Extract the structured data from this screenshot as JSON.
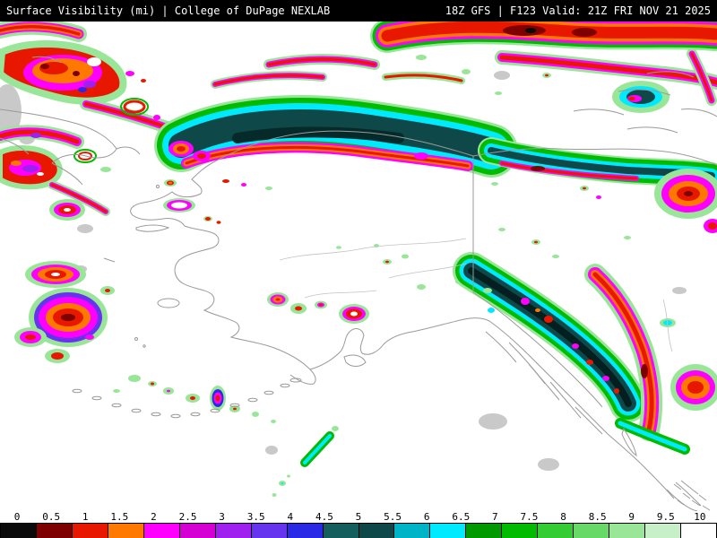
{
  "header": {
    "left": "Surface Visibility (mi) | College of DuPage NEXLAB",
    "right": "18Z GFS | F123 Valid: 21Z FRI NOV 21 2025"
  },
  "colorbar": {
    "min": 0,
    "max": 10,
    "unit": "mi",
    "tick_labels": [
      "0",
      "0.5",
      "1",
      "1.5",
      "2",
      "2.5",
      "3",
      "3.5",
      "4",
      "4.5",
      "5",
      "5.5",
      "6",
      "6.5",
      "7",
      "7.5",
      "8",
      "8.5",
      "9",
      "9.5",
      "10"
    ],
    "segments": [
      {
        "range": "0-0.5",
        "color": "#0a0a0a"
      },
      {
        "range": "0.5-1",
        "color": "#7f0000"
      },
      {
        "range": "1-1.5",
        "color": "#e81800"
      },
      {
        "range": "1.5-2",
        "color": "#ff7800"
      },
      {
        "range": "2-2.5",
        "color": "#ff00ff"
      },
      {
        "range": "2.5-3",
        "color": "#d400d4"
      },
      {
        "range": "3-3.5",
        "color": "#a020f0"
      },
      {
        "range": "3.5-4",
        "color": "#6633ee"
      },
      {
        "range": "4-4.5",
        "color": "#2a2ae6"
      },
      {
        "range": "4.5-5",
        "color": "#155e5e"
      },
      {
        "range": "5-5.5",
        "color": "#0e4848"
      },
      {
        "range": "5.5-6",
        "color": "#00b4c8"
      },
      {
        "range": "6-6.5",
        "color": "#00eaff"
      },
      {
        "range": "6.5-7",
        "color": "#009900"
      },
      {
        "range": "7-7.5",
        "color": "#00bb00"
      },
      {
        "range": "7.5-8",
        "color": "#33cc33"
      },
      {
        "range": "8-8.5",
        "color": "#66d966"
      },
      {
        "range": "8.5-9",
        "color": "#99e699"
      },
      {
        "range": "9-9.5",
        "color": "#c8f0c8"
      },
      {
        "range": "9.5-10",
        "color": "#ffffff"
      }
    ]
  },
  "map": {
    "region": "Alaska, Bering Strait, Gulf of Alaska and northwest Canada",
    "background": "#ffffff",
    "coastline_color": "#9a9a9a",
    "features": [
      "Broad low-visibility band (cyan/dark teal core ringed by magenta-red) across northern Alaska",
      "Dense low-visibility band over top-right (Arctic Canada) edged in green",
      "Clusters of fog/low visibility over Chukotka and west Bering Sea (left edge)",
      "Dark low-visibility corridor along the southeast Alaska panhandle coast",
      "Scattered small reduced-visibility cells along the Aleutians and interior"
    ]
  }
}
